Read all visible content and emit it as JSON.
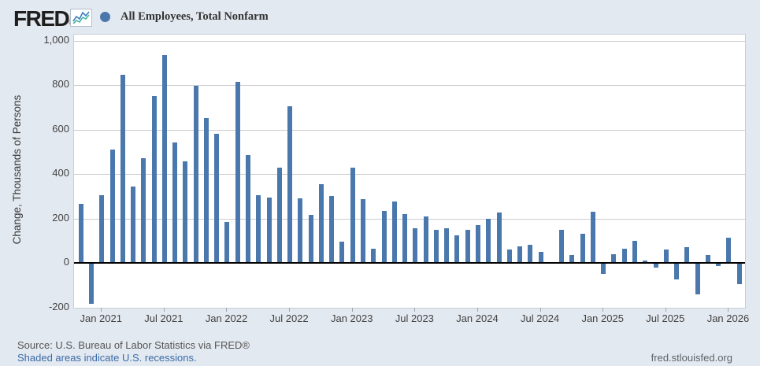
{
  "header": {
    "logo_text": "FRED",
    "registered_mark": "®",
    "legend_label": "All Employees, Total Nonfarm",
    "legend_dot_color": "#4a78ac",
    "logo_chart_icon": "line-chart-icon"
  },
  "y_axis": {
    "title": "Change, Thousands of Persons",
    "tick_labels": [
      "1,000",
      "800",
      "600",
      "400",
      "200",
      "0",
      "-200"
    ],
    "tick_values": [
      1000,
      800,
      600,
      400,
      200,
      0,
      -200
    ]
  },
  "x_axis": {
    "tick_labels": [
      "Jan 2021",
      "Jul 2021",
      "Jan 2022",
      "Jul 2022",
      "Jan 2023",
      "Jul 2023",
      "Jan 2024",
      "Jul 2024",
      "Jan 2025",
      "Jul 2025",
      "Jan 2026"
    ],
    "tick_month_indices": [
      2,
      8,
      14,
      20,
      26,
      32,
      38,
      44,
      50,
      56,
      62
    ]
  },
  "footer": {
    "source": "Source: U.S. Bureau of Labor Statistics via FRED®",
    "recession_note": "Shaded areas indicate U.S. recessions.",
    "site_url": "fred.stlouisfed.org"
  },
  "chart_data": {
    "type": "bar",
    "title": "All Employees, Total Nonfarm",
    "ylabel": "Change, Thousands of Persons",
    "units": "thousands of persons, monthly change",
    "bar_color": "#4a78ac",
    "grid": true,
    "grid_interval": 200,
    "ylim": [
      -202,
      1026
    ],
    "zero_line": true,
    "legend_position": "top-left",
    "x": [
      "Nov 2020",
      "Dec 2020",
      "Jan 2021",
      "Feb 2021",
      "Mar 2021",
      "Apr 2021",
      "May 2021",
      "Jun 2021",
      "Jul 2021",
      "Aug 2021",
      "Sep 2021",
      "Oct 2021",
      "Nov 2021",
      "Dec 2021",
      "Jan 2022",
      "Feb 2022",
      "Mar 2022",
      "Apr 2022",
      "May 2022",
      "Jun 2022",
      "Jul 2022",
      "Aug 2022",
      "Sep 2022",
      "Oct 2022",
      "Nov 2022",
      "Dec 2022",
      "Jan 2023",
      "Feb 2023",
      "Mar 2023",
      "Apr 2023",
      "May 2023",
      "Jun 2023",
      "Jul 2023",
      "Aug 2023",
      "Sep 2023",
      "Oct 2023",
      "Nov 2023",
      "Dec 2023",
      "Jan 2024",
      "Feb 2024",
      "Mar 2024",
      "Apr 2024",
      "May 2024",
      "Jun 2024",
      "Jul 2024",
      "Aug 2024",
      "Sep 2024",
      "Oct 2024",
      "Nov 2024",
      "Dec 2024",
      "Jan 2025",
      "Feb 2025",
      "Mar 2025",
      "Apr 2025",
      "May 2025",
      "Jun 2025",
      "Jul 2025",
      "Aug 2025",
      "Sep 2025",
      "Oct 2025",
      "Nov 2025",
      "Dec 2025",
      "Jan 2026",
      "Feb 2026"
    ],
    "values": [
      265,
      -185,
      305,
      510,
      845,
      345,
      470,
      750,
      935,
      540,
      455,
      795,
      650,
      580,
      185,
      815,
      485,
      305,
      295,
      430,
      705,
      290,
      215,
      355,
      300,
      95,
      430,
      285,
      65,
      235,
      275,
      220,
      155,
      210,
      150,
      155,
      125,
      150,
      170,
      200,
      225,
      60,
      75,
      80,
      50,
      2,
      150,
      35,
      130,
      230,
      -50,
      40,
      65,
      100,
      10,
      -22,
      60,
      -75,
      70,
      -140,
      35,
      -15,
      115,
      -95
    ]
  }
}
